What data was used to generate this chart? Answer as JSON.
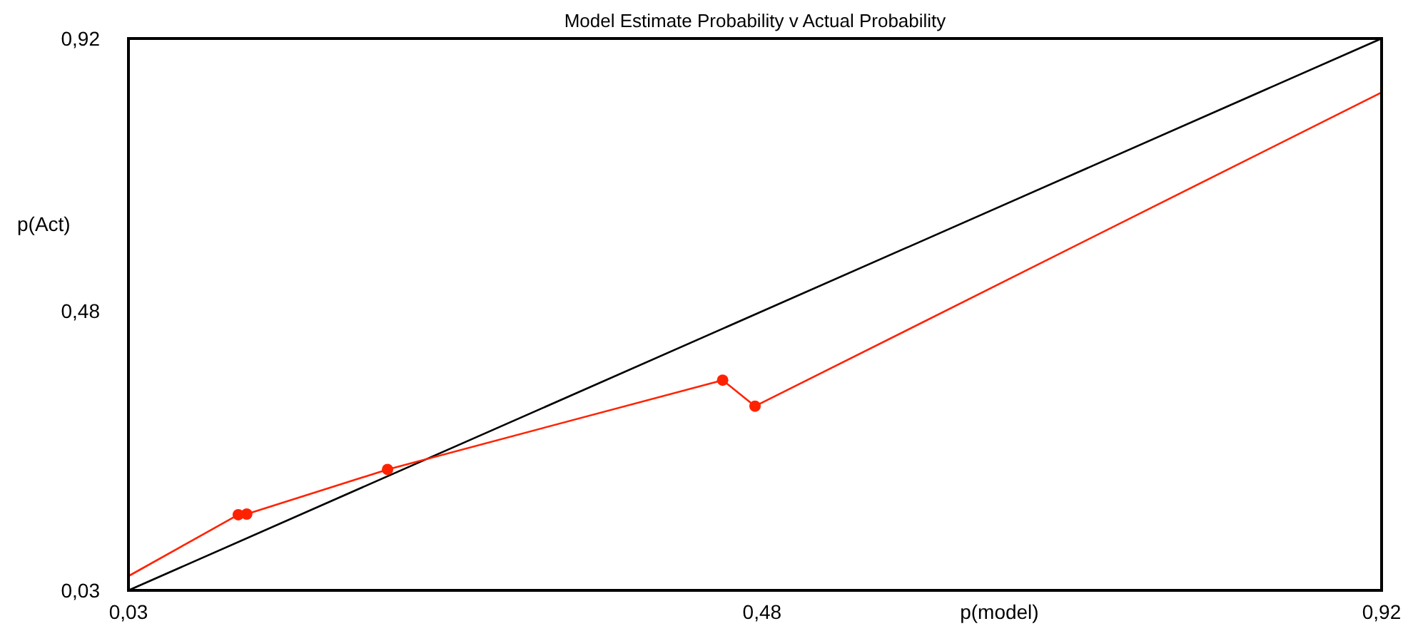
{
  "chart_data": {
    "type": "line",
    "title": "Model Estimate Probability v Actual Probability",
    "xlabel": "p(model)",
    "ylabel": "p(Act)",
    "xlim": [
      0.03,
      0.92
    ],
    "ylim": [
      0.03,
      0.92
    ],
    "xticks": [
      {
        "value": 0.03,
        "label": "0,03"
      },
      {
        "value": 0.48,
        "label": "0,48"
      },
      {
        "value": 0.92,
        "label": "0,92"
      }
    ],
    "yticks": [
      {
        "value": 0.03,
        "label": "0,03"
      },
      {
        "value": 0.48,
        "label": "0,48"
      },
      {
        "value": 0.92,
        "label": "0,92"
      }
    ],
    "grid": false,
    "series": [
      {
        "color": "#000000",
        "marker": "none",
        "x": [
          0.03,
          0.92
        ],
        "values": [
          0.03,
          0.92
        ]
      },
      {
        "color": "#ff2200",
        "marker": "none",
        "x": [
          0.03,
          0.108,
          0.114,
          0.214,
          0.452,
          0.475,
          0.92
        ],
        "values": [
          0.053,
          0.152,
          0.153,
          0.225,
          0.369,
          0.327,
          0.833
        ]
      },
      {
        "type": "scatter",
        "color": "#ff2200",
        "marker": "circle",
        "x": [
          0.108,
          0.114,
          0.214,
          0.452,
          0.475
        ],
        "values": [
          0.152,
          0.153,
          0.225,
          0.369,
          0.327
        ]
      }
    ]
  }
}
